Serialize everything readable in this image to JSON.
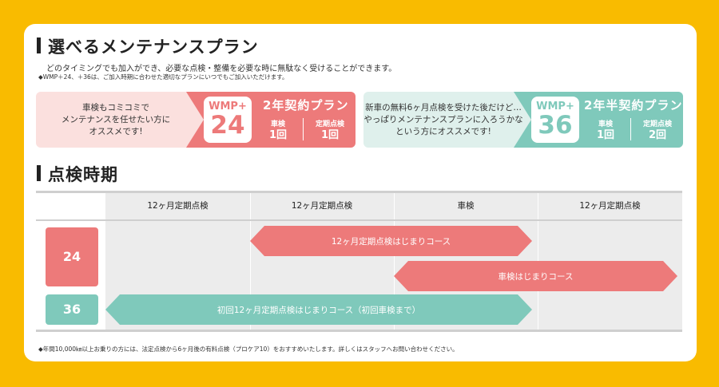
{
  "title1": "選べるメンテナンスプラン",
  "lead": "どのタイミングでも加入ができ、必要な点検・整備を必要な時に無駄なく受けることができます。",
  "note": "◆WMP＋24、＋36は、ご加入時期に合わせた適切なプランにいつでもご加入いただけます。",
  "plans": [
    {
      "desc_lines": [
        "車検もコミコミで",
        "メンテナンスを任せたい方に",
        "オススメです!"
      ],
      "badge_top": "WMP+",
      "badge_num": "24",
      "title": "2年契約プラン",
      "col1_label": "車検",
      "col1_val": "1回",
      "col2_label": "定期点検",
      "col2_val": "1回",
      "color": "#ed7a7a",
      "bg": "#fbe0de"
    },
    {
      "desc_lines": [
        "新車の無料6ヶ月点検を受けた後だけど…",
        "やっぱりメンテナンスプランに入ろうかな",
        "という方にオススメです!"
      ],
      "badge_top": "WMP+",
      "badge_num": "36",
      "title": "2年半契約プラン",
      "col1_label": "車検",
      "col1_val": "1回",
      "col2_label": "定期点検",
      "col2_val": "2回",
      "color": "#7fc9bb",
      "bg": "#dff0ec"
    }
  ],
  "title2": "点検時期",
  "table": {
    "headers": [
      "12ヶ月定期点検",
      "12ヶ月定期点検",
      "車検",
      "12ヶ月定期点検"
    ],
    "row1_label": "24",
    "row2_label": "36",
    "arrow1": "12ヶ月定期点検はじまりコース",
    "arrow2": "車検はじまりコース",
    "arrow3": "初回12ヶ月定期点検はじまりコース（初回車検まで）"
  },
  "footnote": "◆年間10,000㎞以上お乗りの方には、法定点検から6ヶ月後の有料点検（プロケア10）をおすすめいたします。詳しくはスタッフへお問い合わせください。",
  "colors": {
    "background": "#f9bb00",
    "pink": "#ed7a7a",
    "teal": "#7fc9bb"
  }
}
